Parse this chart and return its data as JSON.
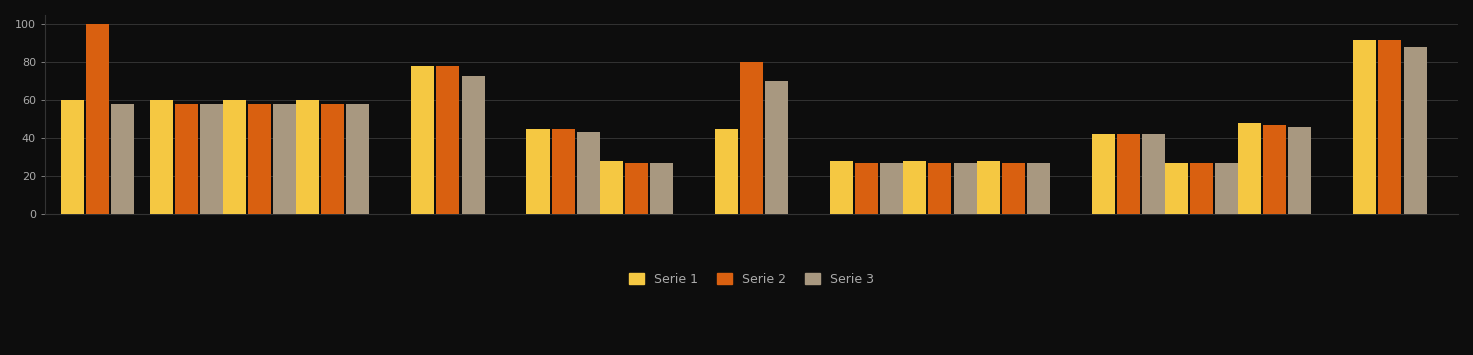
{
  "background_color": "#0d0d0d",
  "bar_colors": [
    "#f5c842",
    "#d96010",
    "#a89880"
  ],
  "grid_color": "#333333",
  "text_color": "#aaaaaa",
  "ylim": [
    0,
    100
  ],
  "yticks": [
    0,
    20,
    40,
    60,
    80,
    100
  ],
  "groups_data": [
    [
      60,
      100,
      58
    ],
    [
      60,
      58,
      58
    ],
    [
      60,
      58,
      58
    ],
    [
      60,
      58,
      58
    ],
    [
      78,
      78,
      73
    ],
    [
      45,
      45,
      43
    ],
    [
      28,
      27,
      27
    ],
    [
      45,
      80,
      70
    ],
    [
      28,
      27,
      27
    ],
    [
      28,
      27,
      27
    ],
    [
      28,
      27,
      27
    ],
    [
      42,
      42,
      42
    ],
    [
      27,
      27,
      27
    ],
    [
      48,
      47,
      46
    ],
    [
      92,
      92,
      88
    ]
  ],
  "group_positions": [
    0,
    0.85,
    1.55,
    2.25,
    3.35,
    4.45,
    5.15,
    6.25,
    7.35,
    8.05,
    8.75,
    9.85,
    10.55,
    11.25,
    12.35
  ],
  "legend_labels": [
    "Serie 1",
    "Serie 2",
    "Serie 3"
  ],
  "bar_width": 0.22,
  "figsize": [
    14.73,
    3.55
  ],
  "dpi": 100
}
